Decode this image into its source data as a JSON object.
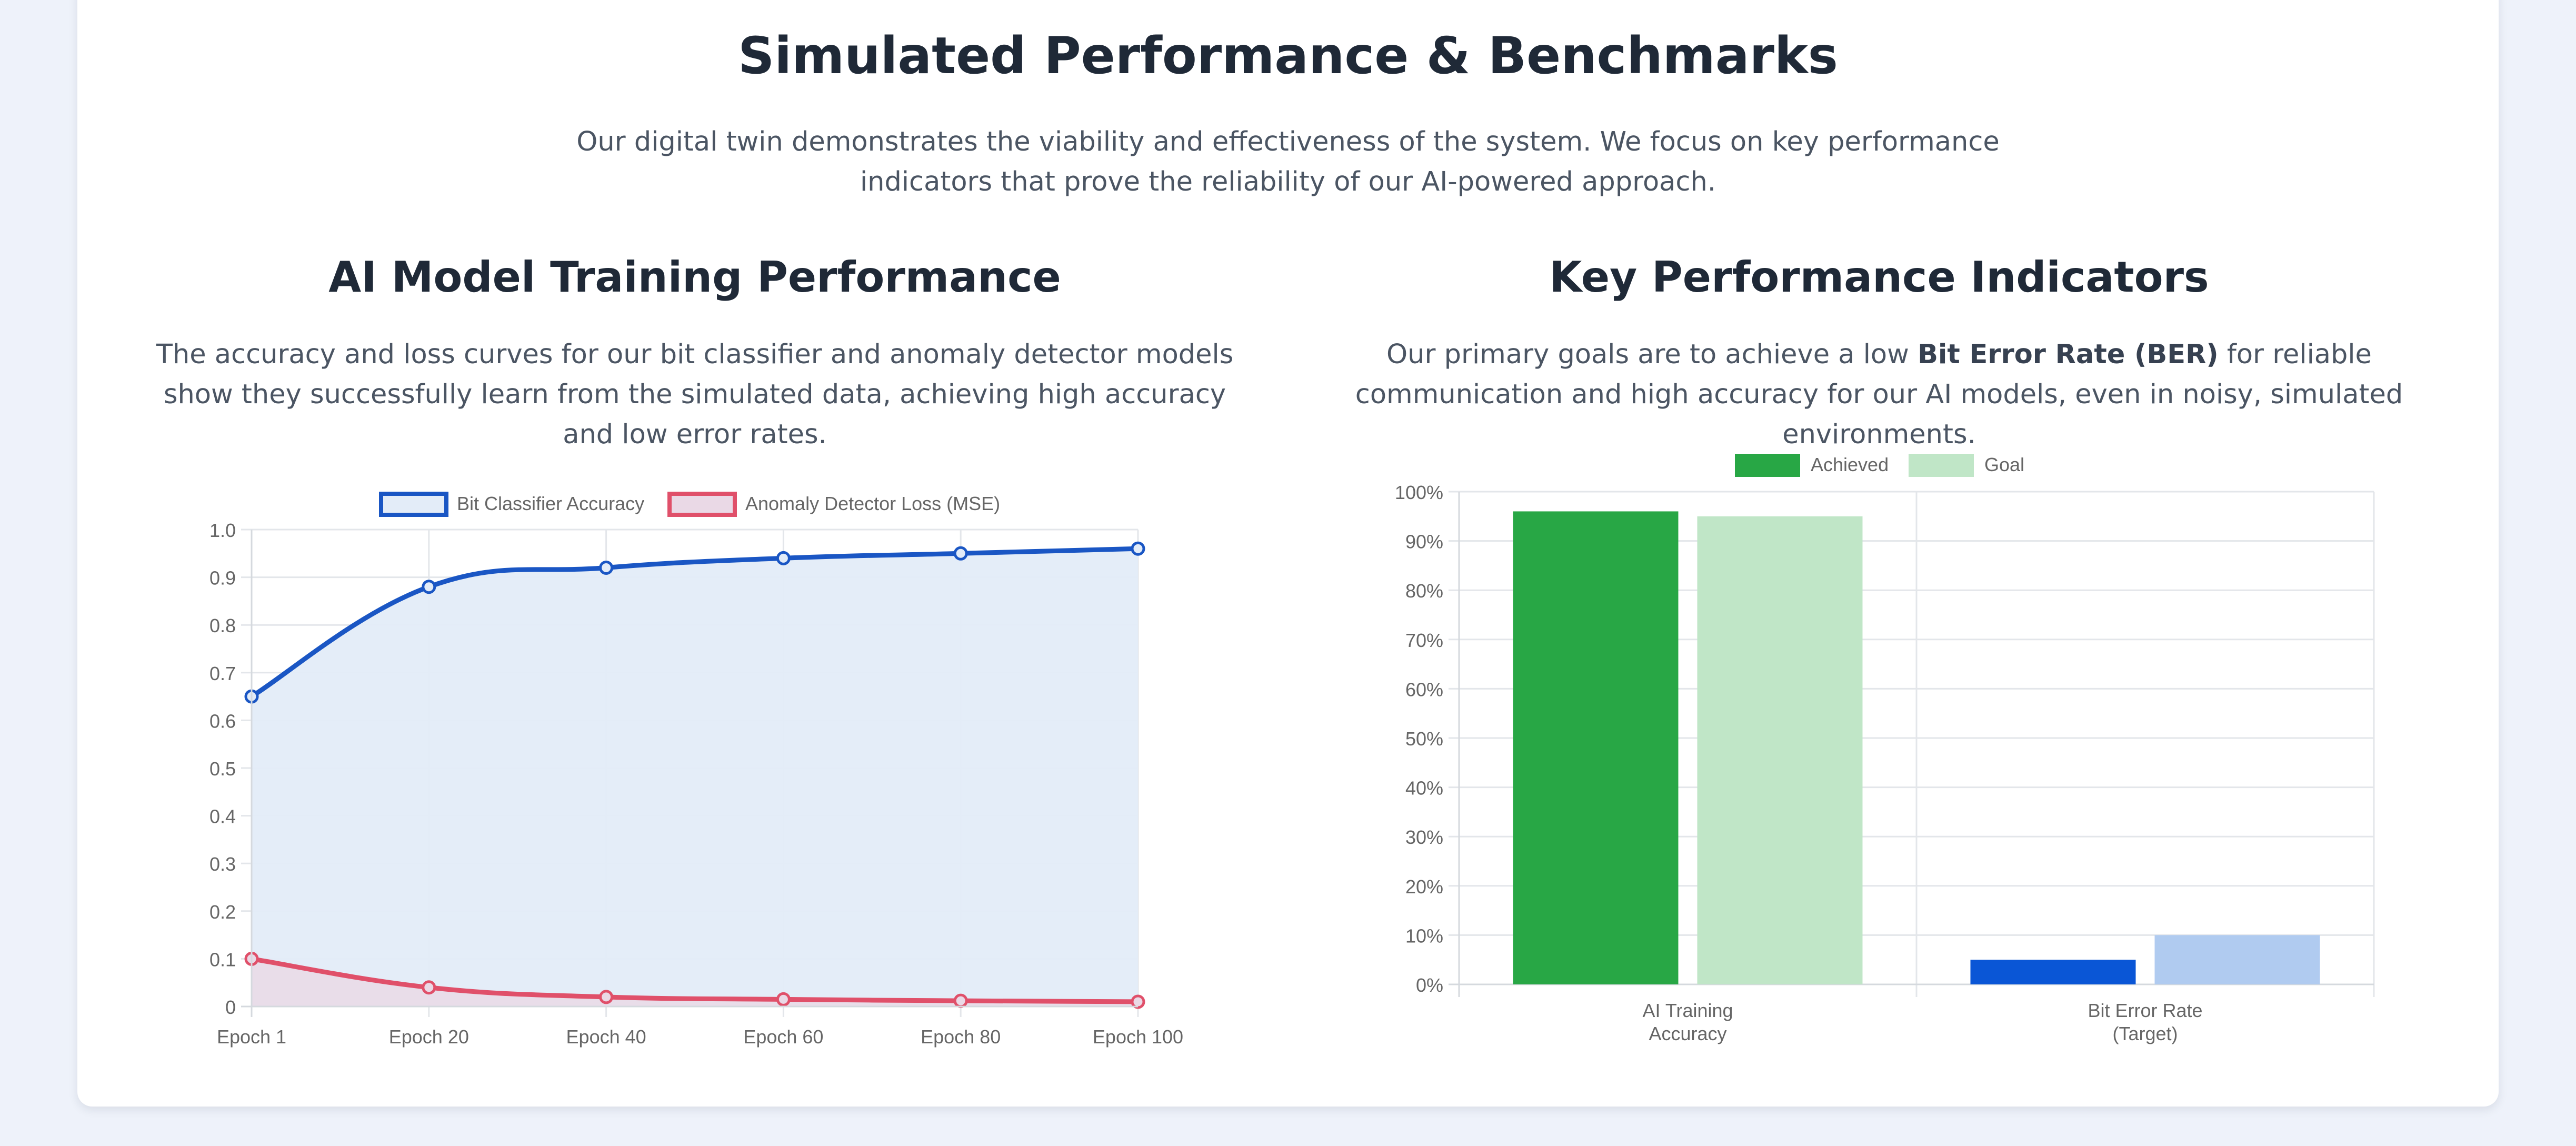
{
  "header": {
    "title": "Simulated Performance & Benchmarks",
    "description": "Our digital twin demonstrates the viability and effectiveness of the system. We focus on key performance indicators that prove the reliability of our AI-powered approach."
  },
  "training": {
    "title": "AI Model Training Performance",
    "description": "The accuracy and loss curves for our bit classifier and anomaly detector models show they successfully learn from the simulated data, achieving high accuracy and low error rates."
  },
  "kpi": {
    "title": "Key Performance Indicators",
    "description_before": "Our primary goals are to achieve a low ",
    "description_bold": "Bit Error Rate (BER)",
    "description_after": " for reliable communication and high accuracy for our AI models, even in noisy, simulated environments."
  },
  "chart_data": [
    {
      "type": "line",
      "x": [
        "Epoch 1",
        "Epoch 20",
        "Epoch 40",
        "Epoch 60",
        "Epoch 80",
        "Epoch 100"
      ],
      "series": [
        {
          "name": "Bit Classifier Accuracy",
          "values": [
            0.65,
            0.88,
            0.92,
            0.94,
            0.95,
            0.96
          ],
          "color": "#1a56c4",
          "fill": "#e3ecf8"
        },
        {
          "name": "Anomaly Detector Loss (MSE)",
          "values": [
            0.1,
            0.04,
            0.02,
            0.015,
            0.012,
            0.01
          ],
          "color": "#e0506a",
          "fill": "#ead9e6"
        }
      ],
      "ylim": [
        0,
        1.0
      ],
      "yticks": [
        "0",
        "0.1",
        "0.2",
        "0.3",
        "0.4",
        "0.5",
        "0.6",
        "0.7",
        "0.8",
        "0.9",
        "1.0"
      ],
      "grid": true,
      "legend": "top"
    },
    {
      "type": "bar",
      "categories": [
        [
          "AI Training",
          "Accuracy"
        ],
        [
          "Bit Error Rate",
          "(Target)"
        ]
      ],
      "series": [
        {
          "name": "Achieved",
          "values": [
            96,
            5
          ],
          "colors": [
            "#28a745",
            "#0a56d6"
          ],
          "legend_color": "#28a745"
        },
        {
          "name": "Goal",
          "values": [
            95,
            10
          ],
          "colors": [
            "#c0e6c7",
            "#b0cbf0"
          ],
          "legend_color": "#c0e6c7"
        }
      ],
      "ylim": [
        0,
        100
      ],
      "yticks": [
        "0%",
        "10%",
        "20%",
        "30%",
        "40%",
        "50%",
        "60%",
        "70%",
        "80%",
        "90%",
        "100%"
      ],
      "grid": true,
      "legend": "top"
    }
  ]
}
